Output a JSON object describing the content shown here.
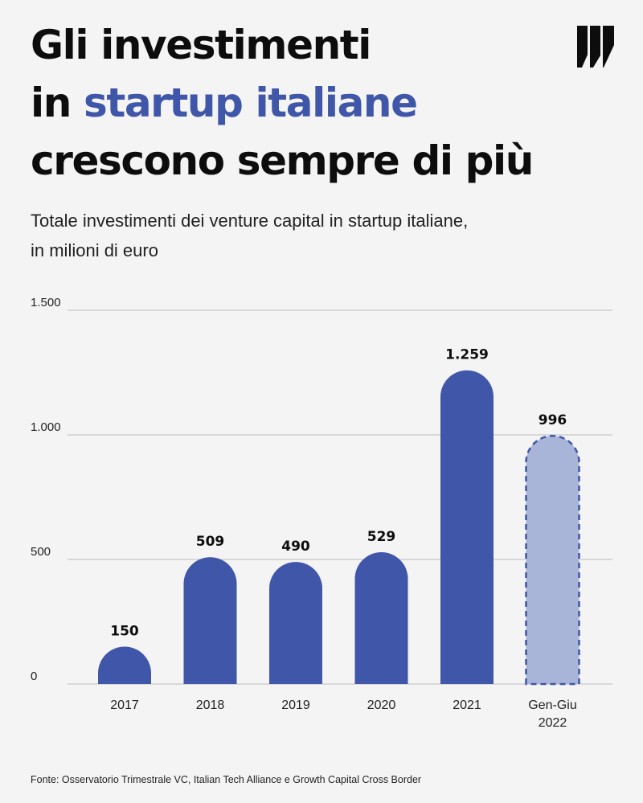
{
  "header": {
    "title_line1": "Gli investimenti",
    "title_line2_prefix": "in ",
    "title_line2_accent": "startup italiane",
    "title_line3": "crescono sempre di più",
    "subtitle_line1": "Totale investimenti dei venture capital in startup italiane,",
    "subtitle_line2": "in milioni di euro"
  },
  "logo_icon": "publisher-logo-icon",
  "colors": {
    "accent": "#3f56a9",
    "bar": "#3f56a9",
    "bar_partial": "#a9b5d8",
    "grid": "#c8c8c8",
    "text": "#0d0d0d"
  },
  "chart_data": {
    "type": "bar",
    "title": "",
    "xlabel": "",
    "ylabel": "",
    "ylim": [
      0,
      1500
    ],
    "yticks": [
      0,
      500,
      1000,
      1500
    ],
    "ytick_labels": [
      "0",
      "500",
      "1.000",
      "1.500"
    ],
    "grid": true,
    "categories": [
      "2017",
      "2018",
      "2019",
      "2020",
      "2021",
      "Gen-Giu 2022"
    ],
    "category_lines": [
      [
        "2017"
      ],
      [
        "2018"
      ],
      [
        "2019"
      ],
      [
        "2020"
      ],
      [
        "2021"
      ],
      [
        "Gen-Giu",
        "2022"
      ]
    ],
    "values": [
      150,
      509,
      490,
      529,
      1259,
      996
    ],
    "value_labels": [
      "150",
      "509",
      "490",
      "529",
      "1.259",
      "996"
    ],
    "partial": [
      false,
      false,
      false,
      false,
      false,
      true
    ]
  },
  "footer": {
    "source": "Fonte: Osservatorio Trimestrale VC, Italian Tech Alliance e Growth Capital Cross Border"
  }
}
